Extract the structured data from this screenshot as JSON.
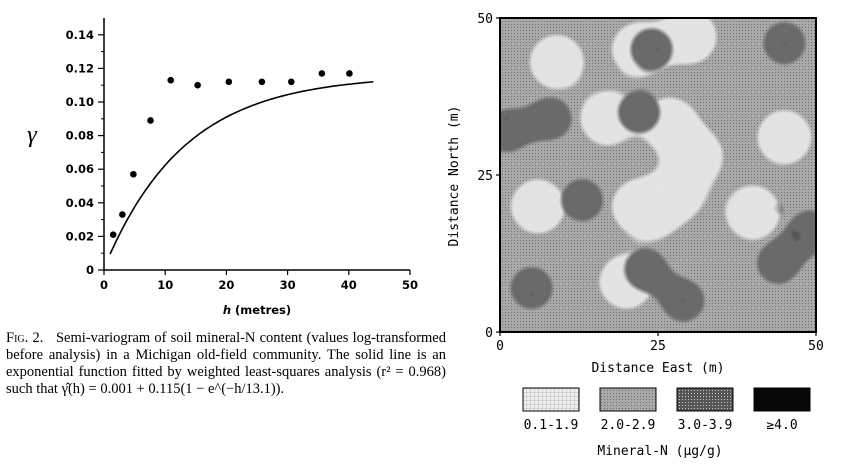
{
  "chart_data": [
    {
      "type": "scatter",
      "title": "",
      "xlabel": "h (metres)",
      "ylabel": "γ",
      "xlim": [
        0,
        50
      ],
      "ylim": [
        0,
        0.15
      ],
      "x_ticks": [
        "0",
        "10",
        "20",
        "30",
        "40",
        "50"
      ],
      "y_ticks": [
        "0",
        "0.02",
        "0.04",
        "0.06",
        "0.08",
        "0.10",
        "0.12",
        "0.14"
      ],
      "points": {
        "x": [
          1.5,
          3,
          4.8,
          7.6,
          10.9,
          15.3,
          20.4,
          25.8,
          30.6,
          35.6,
          40.1
        ],
        "y": [
          0.021,
          0.033,
          0.057,
          0.089,
          0.113,
          0.11,
          0.112,
          0.112,
          0.112,
          0.117,
          0.117
        ]
      },
      "fit": {
        "nugget": 0.001,
        "sill": 0.115,
        "range": 13.1,
        "x_start": 1,
        "x_end": 44
      }
    },
    {
      "type": "heatmap",
      "xlabel": "Distance East (m)",
      "ylabel": "Distance North (m)",
      "xlim": [
        0,
        50
      ],
      "ylim": [
        0,
        50
      ],
      "x_ticks": [
        "0",
        "25",
        "50"
      ],
      "y_ticks": [
        "0",
        "25",
        "50"
      ],
      "legend_title": "Mineral-N (μg/g)",
      "legend": [
        {
          "label": "0.1-1.9",
          "color": "#eeeeee"
        },
        {
          "label": "2.0-2.9",
          "color": "#a9a9a9"
        },
        {
          "label": "3.0-3.9",
          "color": "#555555"
        },
        {
          "label": "≥4.0",
          "color": "#080808"
        }
      ],
      "regions": {
        "low": [
          [
            17,
            34
          ],
          [
            27,
            33
          ],
          [
            31,
            28
          ],
          [
            28,
            22
          ],
          [
            24,
            19
          ],
          [
            22,
            20
          ],
          [
            6,
            20
          ],
          [
            30,
            47
          ],
          [
            9,
            43
          ],
          [
            45,
            31
          ],
          [
            20,
            8
          ],
          [
            40,
            19
          ],
          [
            22,
            45
          ]
        ],
        "high": [
          [
            45,
            46
          ],
          [
            24,
            45
          ],
          [
            1,
            32
          ],
          [
            5,
            7
          ],
          [
            29,
            5
          ],
          [
            44,
            11
          ],
          [
            49,
            16
          ],
          [
            23,
            10
          ],
          [
            22,
            35
          ],
          [
            8,
            34
          ],
          [
            13,
            21
          ]
        ],
        "peak": [
          [
            45,
            46
          ],
          [
            25,
            45
          ],
          [
            1,
            34
          ],
          [
            5,
            6
          ],
          [
            29,
            5
          ],
          [
            47,
            15
          ],
          [
            44,
            20
          ]
        ]
      }
    }
  ],
  "caption": {
    "label": "Fig. 2.",
    "text": "Semi-variogram of soil mineral-N content (values log-transformed before analysis) in a Michigan old-field community. The solid line is an exponential function fitted by weighted least-squares analysis (r² = 0.968) such that γ̂(h) = 0.001 + 0.115(1 − e^(−h/13.1))."
  }
}
